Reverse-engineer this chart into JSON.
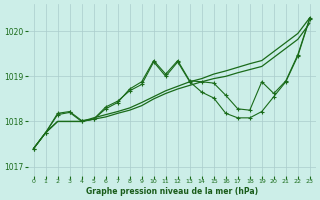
{
  "bg_color": "#cceee8",
  "grid_color": "#aacccc",
  "line_color": "#1a6b1a",
  "xlabel": "Graphe pression niveau de la mer (hPa)",
  "xlabel_color": "#1a5c1a",
  "tick_color": "#1a6b1a",
  "xlim": [
    -0.5,
    23.5
  ],
  "ylim": [
    1016.8,
    1020.6
  ],
  "yticks": [
    1017,
    1018,
    1019,
    1020
  ],
  "xticks": [
    0,
    1,
    2,
    3,
    4,
    5,
    6,
    7,
    8,
    9,
    10,
    11,
    12,
    13,
    14,
    15,
    16,
    17,
    18,
    19,
    20,
    21,
    22,
    23
  ],
  "line1_no_marker": [
    1017.4,
    1017.75,
    1018.0,
    1018.0,
    1018.0,
    1018.08,
    1018.15,
    1018.22,
    1018.3,
    1018.42,
    1018.55,
    1018.68,
    1018.78,
    1018.88,
    1018.95,
    1019.05,
    1019.12,
    1019.2,
    1019.28,
    1019.35,
    1019.55,
    1019.75,
    1019.95,
    1020.3
  ],
  "line2_marker": [
    1017.4,
    1017.75,
    1018.15,
    1018.2,
    1018.0,
    1018.05,
    1018.28,
    1018.42,
    1018.72,
    1018.88,
    1019.35,
    1019.05,
    1019.35,
    1018.9,
    1018.88,
    1018.85,
    1018.58,
    1018.28,
    1018.25,
    1018.88,
    1018.62,
    1018.9,
    1019.48,
    1020.3
  ],
  "line3_no_marker": [
    1017.4,
    1017.75,
    1018.0,
    1018.0,
    1018.0,
    1018.05,
    1018.1,
    1018.18,
    1018.25,
    1018.35,
    1018.5,
    1018.62,
    1018.72,
    1018.8,
    1018.88,
    1018.95,
    1019.0,
    1019.08,
    1019.15,
    1019.22,
    1019.42,
    1019.62,
    1019.82,
    1020.18
  ],
  "line4_marker": [
    1017.4,
    1017.75,
    1018.18,
    1018.22,
    1018.02,
    1018.05,
    1018.32,
    1018.45,
    1018.68,
    1018.82,
    1019.32,
    1019.0,
    1019.32,
    1018.88,
    1018.65,
    1018.52,
    1018.18,
    1018.08,
    1018.08,
    1018.22,
    1018.55,
    1018.88,
    1019.45,
    1020.28
  ]
}
